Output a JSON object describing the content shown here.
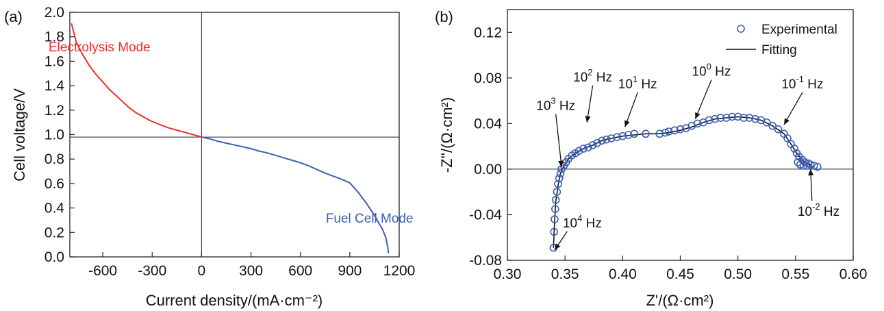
{
  "chart_data": [
    {
      "panel": "(a)",
      "type": "line",
      "xlabel": "Current density/(mA·cm⁻²)",
      "ylabel": "Cell voltage/V",
      "xlim": [
        -800,
        1200
      ],
      "ylim": [
        0.0,
        2.0
      ],
      "x_ticks": [
        -600,
        -300,
        0,
        300,
        600,
        900,
        1200
      ],
      "x_tick_labels": [
        "-600",
        "-300",
        "0",
        "300",
        "600",
        "900",
        "1200"
      ],
      "y_ticks": [
        0.0,
        0.2,
        0.4,
        0.6,
        0.8,
        1.0,
        1.2,
        1.4,
        1.6,
        1.8,
        2.0
      ],
      "y_tick_labels": [
        "0.0",
        "0.2",
        "0.4",
        "0.6",
        "0.8",
        "1.0",
        "1.2",
        "1.4",
        "1.6",
        "1.8",
        "2.0"
      ],
      "reference_lines": {
        "x": 0,
        "y": 0.98
      },
      "series": [
        {
          "name": "Electrolysis Mode",
          "color": "#e8302c",
          "points": [
            [
              -790,
              1.91
            ],
            [
              -760,
              1.75
            ],
            [
              -720,
              1.65
            ],
            [
              -680,
              1.56
            ],
            [
              -640,
              1.49
            ],
            [
              -600,
              1.43
            ],
            [
              -560,
              1.37
            ],
            [
              -520,
              1.32
            ],
            [
              -480,
              1.27
            ],
            [
              -440,
              1.22
            ],
            [
              -400,
              1.18
            ],
            [
              -360,
              1.15
            ],
            [
              -320,
              1.12
            ],
            [
              -280,
              1.095
            ],
            [
              -240,
              1.075
            ],
            [
              -200,
              1.055
            ],
            [
              -160,
              1.04
            ],
            [
              -120,
              1.025
            ],
            [
              -80,
              1.01
            ],
            [
              -40,
              0.995
            ],
            [
              0,
              0.98
            ]
          ]
        },
        {
          "name": "Fuel Cell Mode",
          "color": "#3a5fb0",
          "points": [
            [
              0,
              0.98
            ],
            [
              50,
              0.965
            ],
            [
              100,
              0.945
            ],
            [
              150,
              0.93
            ],
            [
              200,
              0.915
            ],
            [
              250,
              0.9
            ],
            [
              300,
              0.885
            ],
            [
              350,
              0.865
            ],
            [
              400,
              0.85
            ],
            [
              450,
              0.83
            ],
            [
              500,
              0.81
            ],
            [
              550,
              0.79
            ],
            [
              600,
              0.77
            ],
            [
              650,
              0.745
            ],
            [
              700,
              0.715
            ],
            [
              750,
              0.685
            ],
            [
              800,
              0.66
            ],
            [
              850,
              0.635
            ],
            [
              900,
              0.605
            ],
            [
              950,
              0.53
            ],
            [
              1000,
              0.44
            ],
            [
              1050,
              0.34
            ],
            [
              1100,
              0.22
            ],
            [
              1120,
              0.15
            ],
            [
              1130,
              0.08
            ],
            [
              1135,
              0.03
            ]
          ]
        }
      ],
      "annotations": [
        {
          "text": "Electrolysis Mode",
          "x": -620,
          "y": 1.68,
          "color": "#e8302c"
        },
        {
          "text": "Fuel Cell Mode",
          "x": 1020,
          "y": 0.28,
          "color": "#3a5fb0"
        }
      ]
    },
    {
      "panel": "(b)",
      "type": "scatter",
      "xlabel": "Z'/(Ω·cm²)",
      "ylabel": "-Z''/(Ω·cm²)",
      "xlim": [
        0.3,
        0.6
      ],
      "ylim": [
        -0.08,
        0.14
      ],
      "x_ticks": [
        0.3,
        0.35,
        0.4,
        0.45,
        0.5,
        0.55,
        0.6
      ],
      "x_tick_labels": [
        "0.30",
        "0.35",
        "0.40",
        "0.45",
        "0.50",
        "0.55",
        "0.60"
      ],
      "y_ticks": [
        -0.08,
        -0.04,
        0.0,
        0.04,
        0.08,
        0.12
      ],
      "y_tick_labels": [
        "-0.08",
        "-0.04",
        "0.00",
        "0.04",
        "0.08",
        "0.12"
      ],
      "reference_lines": {
        "y": 0.0
      },
      "legend": {
        "placement": "top-right",
        "entries": [
          "Experimental",
          "Fitting"
        ]
      },
      "series": [
        {
          "name": "Experimental",
          "marker": "circle",
          "color": "#3a5fb0",
          "points": [
            [
              0.34,
              -0.069
            ],
            [
              0.3405,
              -0.055
            ],
            [
              0.341,
              -0.044
            ],
            [
              0.3415,
              -0.035
            ],
            [
              0.342,
              -0.027
            ],
            [
              0.343,
              -0.02
            ],
            [
              0.344,
              -0.013
            ],
            [
              0.345,
              -0.008
            ],
            [
              0.346,
              -0.004
            ],
            [
              0.347,
              0.0
            ],
            [
              0.349,
              0.003
            ],
            [
              0.351,
              0.006
            ],
            [
              0.353,
              0.009
            ],
            [
              0.356,
              0.012
            ],
            [
              0.359,
              0.014
            ],
            [
              0.362,
              0.016
            ],
            [
              0.366,
              0.018
            ],
            [
              0.37,
              0.019
            ],
            [
              0.374,
              0.021
            ],
            [
              0.378,
              0.023
            ],
            [
              0.382,
              0.025
            ],
            [
              0.386,
              0.026
            ],
            [
              0.39,
              0.027
            ],
            [
              0.395,
              0.028
            ],
            [
              0.4,
              0.029
            ],
            [
              0.405,
              0.03
            ],
            [
              0.41,
              0.031
            ],
            [
              0.42,
              0.031
            ],
            [
              0.432,
              0.031
            ],
            [
              0.437,
              0.032
            ],
            [
              0.44,
              0.033
            ],
            [
              0.445,
              0.034
            ],
            [
              0.45,
              0.035
            ],
            [
              0.455,
              0.036
            ],
            [
              0.46,
              0.038
            ],
            [
              0.465,
              0.04
            ],
            [
              0.47,
              0.041
            ],
            [
              0.475,
              0.043
            ],
            [
              0.48,
              0.044
            ],
            [
              0.485,
              0.045
            ],
            [
              0.49,
              0.045
            ],
            [
              0.495,
              0.046
            ],
            [
              0.5,
              0.046
            ],
            [
              0.505,
              0.045
            ],
            [
              0.51,
              0.045
            ],
            [
              0.515,
              0.044
            ],
            [
              0.52,
              0.043
            ],
            [
              0.525,
              0.041
            ],
            [
              0.53,
              0.038
            ],
            [
              0.535,
              0.035
            ],
            [
              0.54,
              0.031
            ],
            [
              0.543,
              0.027
            ],
            [
              0.546,
              0.022
            ],
            [
              0.549,
              0.018
            ],
            [
              0.551,
              0.014
            ],
            [
              0.553,
              0.011
            ],
            [
              0.556,
              0.008
            ],
            [
              0.558,
              0.006
            ],
            [
              0.561,
              0.005
            ],
            [
              0.563,
              0.004
            ],
            [
              0.566,
              0.003
            ],
            [
              0.569,
              0.002
            ],
            [
              0.552,
              0.006
            ],
            [
              0.554,
              0.004
            ],
            [
              0.557,
              0.003
            ],
            [
              0.56,
              0.003
            ]
          ]
        },
        {
          "name": "Fitting",
          "color": "#111111",
          "points": [
            [
              0.34,
              -0.069
            ],
            [
              0.341,
              -0.045
            ],
            [
              0.342,
              -0.028
            ],
            [
              0.344,
              -0.014
            ],
            [
              0.346,
              -0.004
            ],
            [
              0.349,
              0.003
            ],
            [
              0.353,
              0.009
            ],
            [
              0.359,
              0.014
            ],
            [
              0.366,
              0.018
            ],
            [
              0.374,
              0.021
            ],
            [
              0.382,
              0.025
            ],
            [
              0.39,
              0.027
            ],
            [
              0.4,
              0.029
            ],
            [
              0.41,
              0.03
            ],
            [
              0.42,
              0.031
            ],
            [
              0.43,
              0.031
            ],
            [
              0.44,
              0.032
            ],
            [
              0.45,
              0.034
            ],
            [
              0.46,
              0.037
            ],
            [
              0.47,
              0.041
            ],
            [
              0.48,
              0.044
            ],
            [
              0.49,
              0.045
            ],
            [
              0.5,
              0.046
            ],
            [
              0.51,
              0.045
            ],
            [
              0.52,
              0.043
            ],
            [
              0.53,
              0.038
            ],
            [
              0.54,
              0.031
            ],
            [
              0.546,
              0.022
            ],
            [
              0.551,
              0.014
            ],
            [
              0.556,
              0.008
            ],
            [
              0.561,
              0.004
            ],
            [
              0.566,
              0.002
            ]
          ]
        }
      ],
      "annotations": [
        {
          "text": "10³ Hz",
          "base": "10",
          "exp": "3",
          "unit": " Hz",
          "x": 0.342,
          "y": 0.052,
          "arrow_to": [
            0.347,
            0.002
          ]
        },
        {
          "text": "10² Hz",
          "base": "10",
          "exp": "2",
          "unit": " Hz",
          "x": 0.374,
          "y": 0.077,
          "arrow_to": [
            0.369,
            0.041
          ]
        },
        {
          "text": "10¹ Hz",
          "base": "10",
          "exp": "1",
          "unit": " Hz",
          "x": 0.413,
          "y": 0.071,
          "arrow_to": [
            0.402,
            0.037
          ]
        },
        {
          "text": "10⁰ Hz",
          "base": "10",
          "exp": "0",
          "unit": " Hz",
          "x": 0.477,
          "y": 0.082,
          "arrow_to": [
            0.463,
            0.044
          ]
        },
        {
          "text": "10⁻¹ Hz",
          "base": "10",
          "exp": "-1",
          "unit": " Hz",
          "x": 0.556,
          "y": 0.071,
          "arrow_to": [
            0.54,
            0.039
          ]
        },
        {
          "text": "10⁻² Hz",
          "base": "10",
          "exp": "-2",
          "unit": " Hz",
          "x": 0.57,
          "y": -0.041,
          "arrow_to": [
            0.563,
            0.0
          ]
        },
        {
          "text": "10⁴ Hz",
          "base": "10",
          "exp": "4",
          "unit": " Hz",
          "x": 0.365,
          "y": -0.051,
          "arrow_to": [
            0.341,
            -0.071
          ]
        }
      ]
    }
  ]
}
